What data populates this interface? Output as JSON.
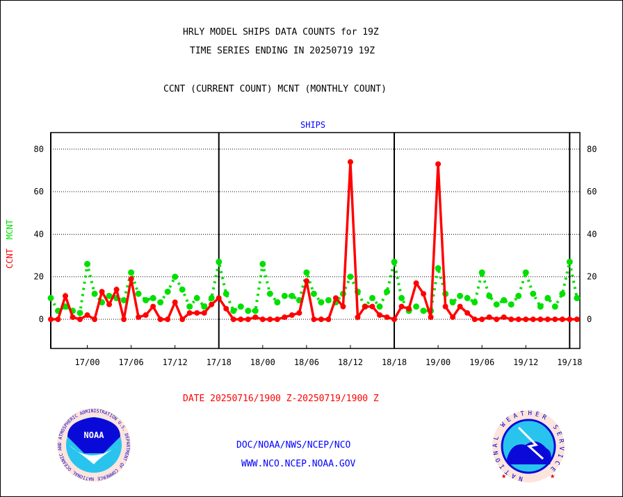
{
  "chart_data": {
    "type": "line",
    "title_lines": [
      "HRLY MODEL SHIPS DATA COUNTS for 19Z",
      "TIME SERIES ENDING IN 20250719 19Z"
    ],
    "subtitle": "CCNT (CURRENT COUNT) MCNT (MONTHLY COUNT)",
    "panel_label": "SHIPS",
    "ylabel_ccnt": "CCNT",
    "ylabel_mcnt": "MCNT",
    "xlabel": "DATE 20250716/1900 Z-20250719/1900 Z",
    "ylim": [
      -13.7,
      87.8
    ],
    "yticks": [
      0,
      20,
      40,
      60,
      80
    ],
    "x_hours_range": [
      0,
      72.4
    ],
    "x_start": "16/19",
    "xtick_labels": [
      {
        "label": "17/00",
        "hour": 5
      },
      {
        "label": "17/06",
        "hour": 11
      },
      {
        "label": "17/12",
        "hour": 17
      },
      {
        "label": "17/18",
        "hour": 23
      },
      {
        "label": "18/00",
        "hour": 29
      },
      {
        "label": "18/06",
        "hour": 35
      },
      {
        "label": "18/12",
        "hour": 41
      },
      {
        "label": "18/18",
        "hour": 47
      },
      {
        "label": "19/00",
        "hour": 53
      },
      {
        "label": "19/06",
        "hour": 59
      },
      {
        "label": "19/12",
        "hour": 65
      },
      {
        "label": "19/18",
        "hour": 71
      }
    ],
    "day_lines_hours": [
      23,
      47,
      71
    ],
    "grid": true,
    "series": [
      {
        "name": "CCNT",
        "color": "#ff0000",
        "style": "solid",
        "values": [
          0,
          0,
          11,
          1,
          0,
          2,
          0,
          13,
          7,
          14,
          0,
          19,
          1,
          2,
          6,
          0,
          0,
          8,
          0,
          3,
          3,
          3,
          7,
          10,
          5,
          0,
          0,
          0,
          1,
          0,
          0,
          0,
          1,
          2,
          3,
          18,
          0,
          0,
          0,
          10,
          6,
          74,
          1,
          6,
          6,
          2,
          1,
          0,
          6,
          5,
          17,
          12,
          1,
          73,
          6,
          1,
          6,
          3,
          0,
          0,
          1,
          0,
          1,
          0,
          0,
          0,
          0,
          0,
          0,
          0,
          0,
          0,
          0
        ]
      },
      {
        "name": "MCNT",
        "color": "#00e000",
        "style": "dotted",
        "values": [
          10,
          4,
          6,
          4,
          3,
          26,
          12,
          8,
          11,
          10,
          9,
          22,
          12,
          9,
          10,
          8,
          13,
          20,
          14,
          6,
          10,
          6,
          10,
          27,
          12,
          4,
          6,
          4,
          4,
          26,
          12,
          8,
          11,
          11,
          9,
          22,
          12,
          8,
          9,
          8,
          12,
          20,
          13,
          6,
          10,
          6,
          13,
          27,
          10,
          4,
          6,
          4,
          4,
          24,
          12,
          8,
          11,
          10,
          8,
          22,
          11,
          7,
          9,
          7,
          11,
          22,
          12,
          6,
          10,
          6,
          12,
          27,
          10
        ]
      }
    ]
  },
  "footer": {
    "line1": "DOC/NOAA/NWS/NCEP/NCO",
    "line2": "WWW.NCO.NCEP.NOAA.GOV",
    "noaa_logo_text": "NOAA",
    "noaa_ring_text": "NATIONAL OCEANIC AND ATMOSPHERIC ADMINISTRATION U.S. DEPARTMENT OF COMMERCE",
    "nws_ring_text": "NATIONAL WEATHER SERVICE"
  }
}
